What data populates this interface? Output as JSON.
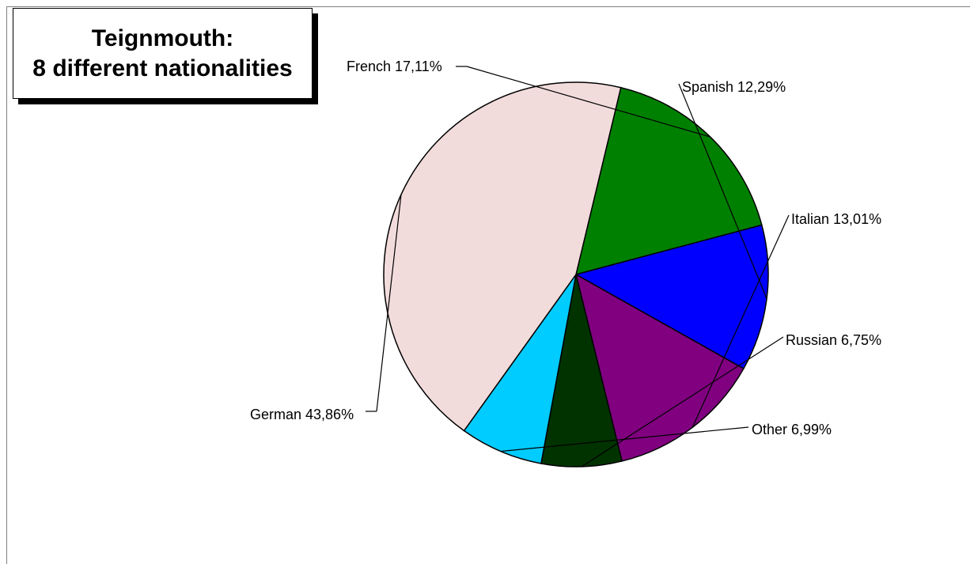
{
  "chart_data": {
    "type": "pie",
    "title_lines": [
      "Teignmouth:",
      "8 different nationalities"
    ],
    "slices": [
      {
        "name": "French",
        "value": 17.11,
        "label": "French 17,11%",
        "color": "#008000"
      },
      {
        "name": "Spanish",
        "value": 12.29,
        "label": "Spanish 12,29%",
        "color": "#0000ff"
      },
      {
        "name": "Italian",
        "value": 13.01,
        "label": "Italian 13,01%",
        "color": "#800080"
      },
      {
        "name": "Russian",
        "value": 6.75,
        "label": "Russian 6,75%",
        "color": "#003300"
      },
      {
        "name": "Other",
        "value": 6.99,
        "label": "Other 6,99%",
        "color": "#00ccff"
      },
      {
        "name": "German",
        "value": 43.86,
        "label": "German 43,86%",
        "color": "#f2dcdb"
      }
    ],
    "legend": "none",
    "labels": "outside-with-leader-lines"
  }
}
